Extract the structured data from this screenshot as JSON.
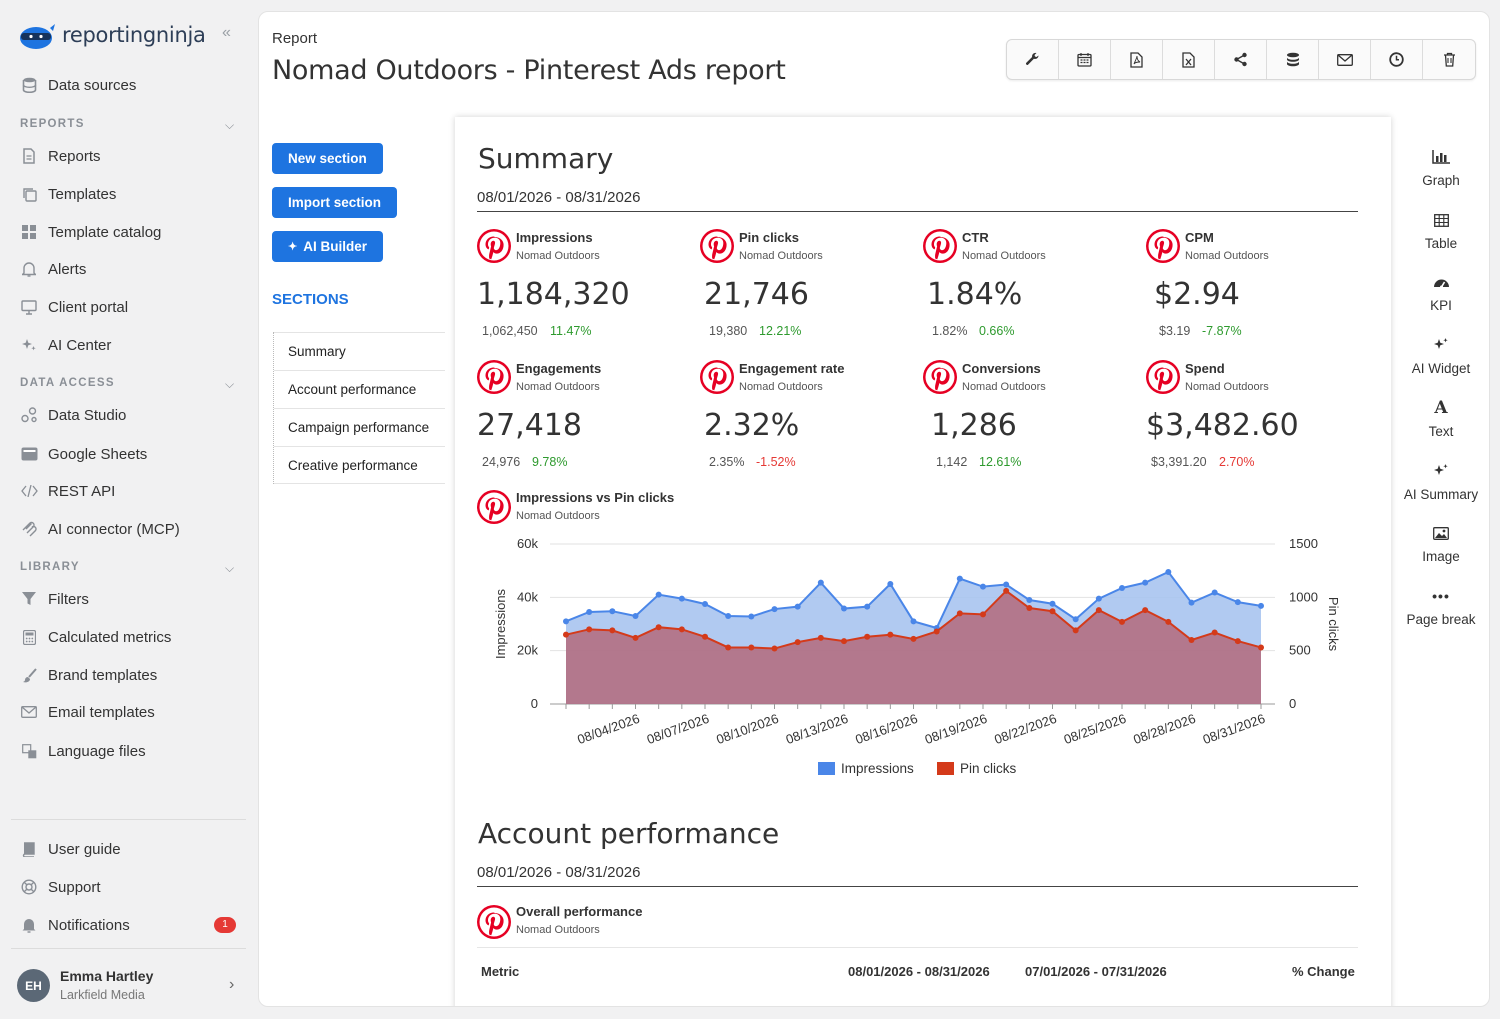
{
  "brand": {
    "name": "reportingninja",
    "accent": "#1e74e0"
  },
  "sidebar": {
    "top_items": [
      {
        "label": "Data sources",
        "icon": "database-icon"
      }
    ],
    "groups": [
      {
        "label": "REPORTS",
        "items": [
          {
            "label": "Reports",
            "icon": "document-icon"
          },
          {
            "label": "Templates",
            "icon": "copy-icon"
          },
          {
            "label": "Template catalog",
            "icon": "grid-icon"
          },
          {
            "label": "Alerts",
            "icon": "bell-icon"
          },
          {
            "label": "Client portal",
            "icon": "monitor-icon"
          },
          {
            "label": "AI Center",
            "icon": "sparkle-icon"
          }
        ]
      },
      {
        "label": "DATA ACCESS",
        "items": [
          {
            "label": "Data Studio",
            "icon": "data-studio-icon"
          },
          {
            "label": "Google Sheets",
            "icon": "sheets-icon"
          },
          {
            "label": "REST API",
            "icon": "code-icon"
          },
          {
            "label": "AI connector (MCP)",
            "icon": "mcp-icon"
          }
        ]
      },
      {
        "label": "LIBRARY",
        "items": [
          {
            "label": "Filters",
            "icon": "filter-icon"
          },
          {
            "label": "Calculated metrics",
            "icon": "calculator-icon"
          },
          {
            "label": "Brand templates",
            "icon": "brush-icon"
          },
          {
            "label": "Email templates",
            "icon": "envelope-icon"
          },
          {
            "label": "Language files",
            "icon": "language-icon"
          }
        ]
      }
    ],
    "bottom_items": [
      {
        "label": "User guide",
        "icon": "book-icon"
      },
      {
        "label": "Support",
        "icon": "lifebuoy-icon"
      },
      {
        "label": "Notifications",
        "icon": "bell-icon",
        "badge": "1"
      }
    ],
    "user": {
      "initials": "EH",
      "name": "Emma Hartley",
      "org": "Larkfield Media"
    }
  },
  "header": {
    "breadcrumb": "Report",
    "title": "Nomad Outdoors - Pinterest Ads report",
    "toolbar_icons": [
      "wrench-icon",
      "calendar-icon",
      "pdf-icon",
      "excel-icon",
      "share-icon",
      "database-icon",
      "envelope-icon",
      "clock-icon",
      "trash-icon"
    ]
  },
  "actions": {
    "new_section": "New section",
    "import_section": "Import section",
    "ai_builder": "AI Builder"
  },
  "sections": {
    "heading": "SECTIONS",
    "items": [
      "Summary",
      "Account performance",
      "Campaign performance",
      "Creative performance"
    ]
  },
  "report": {
    "summary": {
      "title": "Summary",
      "date_range": "08/01/2026 - 08/31/2026",
      "kpis": [
        {
          "name": "Impressions",
          "source": "Nomad Outdoors",
          "value": "1,184,320",
          "previous": "1,062,450",
          "change": "11.47%",
          "trend": "pos"
        },
        {
          "name": "Pin clicks",
          "source": "Nomad Outdoors",
          "value": "21,746",
          "previous": "19,380",
          "change": "12.21%",
          "trend": "pos"
        },
        {
          "name": "CTR",
          "source": "Nomad Outdoors",
          "value": "1.84%",
          "previous": "1.82%",
          "change": "0.66%",
          "trend": "pos"
        },
        {
          "name": "CPM",
          "source": "Nomad Outdoors",
          "value": "$2.94",
          "previous": "$3.19",
          "change": "-7.87%",
          "trend": "pos"
        },
        {
          "name": "Engagements",
          "source": "Nomad Outdoors",
          "value": "27,418",
          "previous": "24,976",
          "change": "9.78%",
          "trend": "pos"
        },
        {
          "name": "Engagement rate",
          "source": "Nomad Outdoors",
          "value": "2.32%",
          "previous": "2.35%",
          "change": "-1.52%",
          "trend": "neg"
        },
        {
          "name": "Conversions",
          "source": "Nomad Outdoors",
          "value": "1,286",
          "previous": "1,142",
          "change": "12.61%",
          "trend": "pos"
        },
        {
          "name": "Spend",
          "source": "Nomad Outdoors",
          "value": "$3,482.60",
          "previous": "$3,391.20",
          "change": "2.70%",
          "trend": "neg"
        }
      ],
      "chart_title": "Impressions vs Pin clicks",
      "chart_source": "Nomad Outdoors"
    },
    "account": {
      "title": "Account performance",
      "date_range": "08/01/2026 - 08/31/2026",
      "widget_title": "Overall performance",
      "widget_source": "Nomad Outdoors",
      "table_headers": [
        "Metric",
        "08/01/2026 - 08/31/2026",
        "07/01/2026 - 07/31/2026",
        "% Change"
      ]
    }
  },
  "palette": [
    {
      "label": "Graph",
      "icon": "bar-chart-icon"
    },
    {
      "label": "Table",
      "icon": "table-icon"
    },
    {
      "label": "KPI",
      "icon": "gauge-icon"
    },
    {
      "label": "AI Widget",
      "icon": "sparkle-icon"
    },
    {
      "label": "Text",
      "icon": "text-icon"
    },
    {
      "label": "AI Summary",
      "icon": "sparkle-icon"
    },
    {
      "label": "Image",
      "icon": "image-icon"
    },
    {
      "label": "Page break",
      "icon": "dots-icon"
    }
  ],
  "chart_data": {
    "type": "area",
    "title": "Impressions vs Pin clicks",
    "x": [
      "08/01/2026",
      "08/02/2026",
      "08/03/2026",
      "08/04/2026",
      "08/05/2026",
      "08/06/2026",
      "08/07/2026",
      "08/08/2026",
      "08/09/2026",
      "08/10/2026",
      "08/11/2026",
      "08/12/2026",
      "08/13/2026",
      "08/14/2026",
      "08/15/2026",
      "08/16/2026",
      "08/17/2026",
      "08/18/2026",
      "08/19/2026",
      "08/20/2026",
      "08/21/2026",
      "08/22/2026",
      "08/23/2026",
      "08/24/2026",
      "08/25/2026",
      "08/26/2026",
      "08/27/2026",
      "08/28/2026",
      "08/29/2026",
      "08/30/2026",
      "08/31/2026"
    ],
    "x_tick_labels": [
      "08/04/2026",
      "08/07/2026",
      "08/10/2026",
      "08/13/2026",
      "08/16/2026",
      "08/19/2026",
      "08/22/2026",
      "08/25/2026",
      "08/28/2026",
      "08/31/2026"
    ],
    "series": [
      {
        "name": "Impressions",
        "axis": "left",
        "color": "#4a86e8",
        "values": [
          31000,
          34500,
          34800,
          33000,
          41000,
          39500,
          37500,
          33000,
          32800,
          35600,
          36500,
          45500,
          35800,
          36500,
          45000,
          31000,
          28500,
          47000,
          44000,
          44800,
          39000,
          37600,
          31800,
          39500,
          43500,
          45500,
          49500,
          38000,
          41800,
          38200,
          36800
        ]
      },
      {
        "name": "Pin clicks",
        "axis": "right",
        "color": "#d43a1a",
        "values": [
          650,
          700,
          690,
          620,
          720,
          700,
          630,
          530,
          530,
          520,
          580,
          620,
          590,
          630,
          650,
          610,
          680,
          850,
          840,
          1060,
          900,
          870,
          690,
          880,
          770,
          880,
          770,
          600,
          670,
          590,
          530
        ]
      }
    ],
    "y_left": {
      "label": "Impressions",
      "ticks": [
        "0",
        "20k",
        "40k",
        "60k"
      ],
      "range": [
        0,
        60000
      ]
    },
    "y_right": {
      "label": "Pin clicks",
      "ticks": [
        "0",
        "500",
        "1000",
        "1500"
      ],
      "range": [
        0,
        1500
      ]
    },
    "legend": "bottom",
    "grid": true
  }
}
